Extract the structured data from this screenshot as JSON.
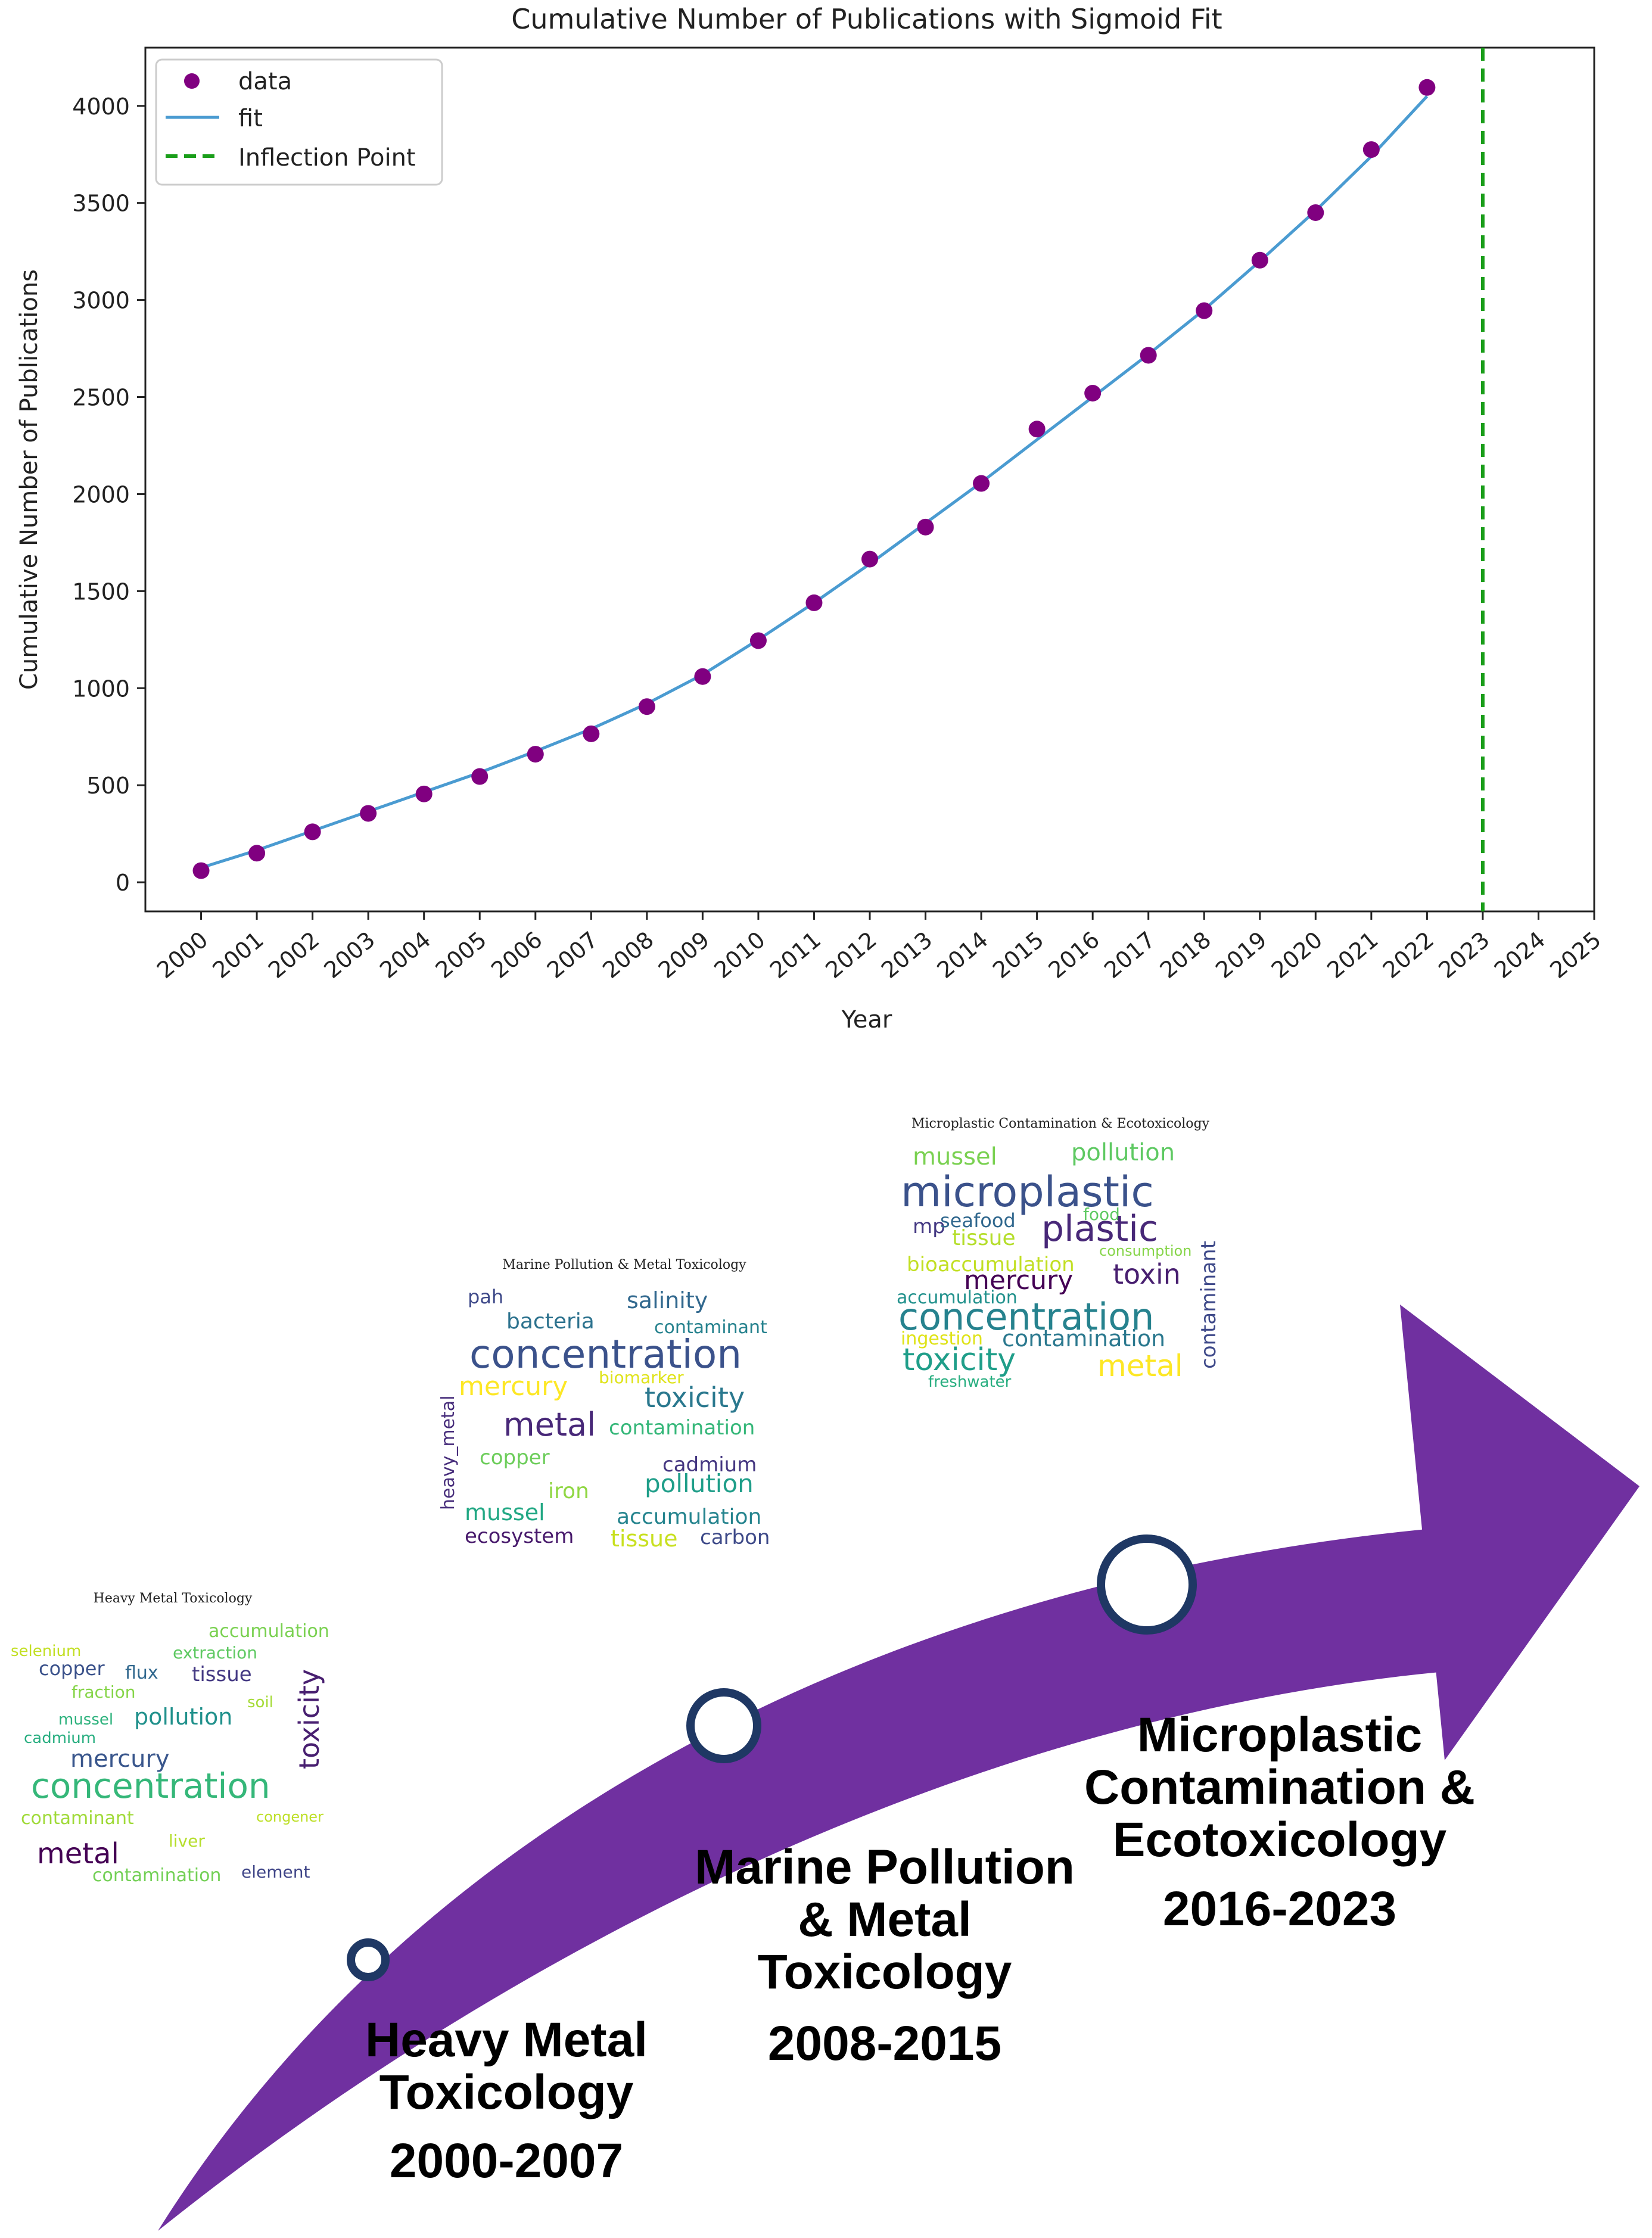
{
  "chart_data": {
    "type": "scatter",
    "title": "Cumulative Number of Publications with Sigmoid Fit",
    "xlabel": "Year",
    "ylabel": "Cumulative Number of Publications",
    "x_ticks": [
      "2000",
      "2001",
      "2002",
      "2003",
      "2004",
      "2005",
      "2006",
      "2007",
      "2008",
      "2009",
      "2010",
      "2011",
      "2012",
      "2013",
      "2014",
      "2015",
      "2016",
      "2017",
      "2018",
      "2019",
      "2020",
      "2021",
      "2022",
      "2023",
      "2024",
      "2025"
    ],
    "y_ticks": [
      0,
      500,
      1000,
      1500,
      2000,
      2500,
      3000,
      3500,
      4000
    ],
    "xlim": [
      1999.0,
      2025.0
    ],
    "ylim": [
      -150,
      4300
    ],
    "grid": false,
    "legend_position": "top-left",
    "legend": {
      "data": "data",
      "fit": "fit",
      "inflection": "Inflection Point"
    },
    "colors": {
      "data": "#800080",
      "fit": "#4a9bd1",
      "inflection": "#1a9e1a",
      "axis": "#222222"
    },
    "series": [
      {
        "name": "data",
        "x": [
          2000,
          2001,
          2002,
          2003,
          2004,
          2005,
          2006,
          2007,
          2008,
          2009,
          2010,
          2011,
          2012,
          2013,
          2014,
          2015,
          2016,
          2017,
          2018,
          2019,
          2020,
          2021,
          2022
        ],
        "y": [
          60,
          150,
          260,
          355,
          455,
          545,
          660,
          765,
          905,
          1060,
          1245,
          1440,
          1665,
          1830,
          2055,
          2335,
          2520,
          2715,
          2945,
          3205,
          3450,
          3775,
          4095
        ]
      },
      {
        "name": "fit",
        "x": [
          2000,
          2001,
          2002,
          2003,
          2004,
          2005,
          2006,
          2007,
          2008,
          2009,
          2010,
          2011,
          2012,
          2013,
          2014,
          2015,
          2016,
          2017,
          2018,
          2019,
          2020,
          2021,
          2022
        ],
        "y": [
          75,
          165,
          265,
          365,
          465,
          565,
          675,
          790,
          920,
          1070,
          1250,
          1440,
          1640,
          1850,
          2060,
          2280,
          2500,
          2720,
          2950,
          3200,
          3460,
          3740,
          4050
        ]
      }
    ],
    "inflection_x": 2023
  },
  "timeline": {
    "arrow_color": "#7030a0",
    "marker_border": "#1f3864",
    "stages": [
      {
        "title_lines": [
          "Heavy Metal",
          "Toxicology"
        ],
        "period": "2000-2007"
      },
      {
        "title_lines": [
          "Marine Pollution",
          "& Metal",
          "Toxicology"
        ],
        "period": "2008-2015"
      },
      {
        "title_lines": [
          "Microplastic",
          "Contamination &",
          "Ecotoxicology"
        ],
        "period": "2016-2023"
      }
    ]
  },
  "wordclouds": [
    {
      "title": "Heavy Metal Toxicology",
      "words": [
        {
          "text": "accumulation",
          "color": "#7ad151"
        },
        {
          "text": "selenium",
          "color": "#c2df23"
        },
        {
          "text": "extraction",
          "color": "#5ec962"
        },
        {
          "text": "copper",
          "color": "#3b528b"
        },
        {
          "text": "flux",
          "color": "#31688e"
        },
        {
          "text": "tissue",
          "color": "#443983"
        },
        {
          "text": "fraction",
          "color": "#86d549"
        },
        {
          "text": "soil",
          "color": "#a5db36"
        },
        {
          "text": "toxicity",
          "color": "#481f70"
        },
        {
          "text": "mussel",
          "color": "#2db27d"
        },
        {
          "text": "pollution",
          "color": "#21918c"
        },
        {
          "text": "cadmium",
          "color": "#28ae80"
        },
        {
          "text": "mercury",
          "color": "#39568c"
        },
        {
          "text": "concentration",
          "color": "#35b779"
        },
        {
          "text": "contaminant",
          "color": "#a0da39"
        },
        {
          "text": "congener",
          "color": "#bddf26"
        },
        {
          "text": "liver",
          "color": "#b5de2b"
        },
        {
          "text": "metal",
          "color": "#440154"
        },
        {
          "text": "contamination",
          "color": "#73d056"
        },
        {
          "text": "element",
          "color": "#404688"
        }
      ]
    },
    {
      "title": "Marine Pollution & Metal Toxicology",
      "words": [
        {
          "text": "pah",
          "color": "#3e4989"
        },
        {
          "text": "salinity",
          "color": "#31688e"
        },
        {
          "text": "bacteria",
          "color": "#2c728e"
        },
        {
          "text": "contaminant",
          "color": "#26828e"
        },
        {
          "text": "concentration",
          "color": "#3b528b"
        },
        {
          "text": "mercury",
          "color": "#fde725"
        },
        {
          "text": "biomarker",
          "color": "#dfe318"
        },
        {
          "text": "toxicity",
          "color": "#2a788e"
        },
        {
          "text": "heavy_metal",
          "color": "#472d7b"
        },
        {
          "text": "metal",
          "color": "#482878"
        },
        {
          "text": "contamination",
          "color": "#35b779"
        },
        {
          "text": "copper",
          "color": "#6ccd5a"
        },
        {
          "text": "cadmium",
          "color": "#453781"
        },
        {
          "text": "iron",
          "color": "#90d743"
        },
        {
          "text": "pollution",
          "color": "#1f9e89"
        },
        {
          "text": "mussel",
          "color": "#22a884"
        },
        {
          "text": "accumulation",
          "color": "#25848e"
        },
        {
          "text": "ecosystem",
          "color": "#481a6c"
        },
        {
          "text": "tissue",
          "color": "#c8e020"
        },
        {
          "text": "carbon",
          "color": "#3e4a89"
        }
      ]
    },
    {
      "title": "Microplastic Contamination & Ecotoxicology",
      "words": [
        {
          "text": "mussel",
          "color": "#7ad151"
        },
        {
          "text": "pollution",
          "color": "#5ec962"
        },
        {
          "text": "microplastic",
          "color": "#3b528b"
        },
        {
          "text": "mp",
          "color": "#443983"
        },
        {
          "text": "seafood",
          "color": "#31688e"
        },
        {
          "text": "food",
          "color": "#5ec962"
        },
        {
          "text": "plastic",
          "color": "#482878"
        },
        {
          "text": "tissue",
          "color": "#b5de2b"
        },
        {
          "text": "contaminant",
          "color": "#3e4989"
        },
        {
          "text": "consumption",
          "color": "#86d549"
        },
        {
          "text": "bioaccumulation",
          "color": "#c2df23"
        },
        {
          "text": "toxin",
          "color": "#481f70"
        },
        {
          "text": "mercury",
          "color": "#440154"
        },
        {
          "text": "accumulation",
          "color": "#21918c"
        },
        {
          "text": "concentration",
          "color": "#26828e"
        },
        {
          "text": "ingestion",
          "color": "#dfe318"
        },
        {
          "text": "contamination",
          "color": "#2a788e"
        },
        {
          "text": "toxicity",
          "color": "#1f9e89"
        },
        {
          "text": "metal",
          "color": "#fde725"
        },
        {
          "text": "freshwater",
          "color": "#28ae80"
        }
      ]
    }
  ]
}
